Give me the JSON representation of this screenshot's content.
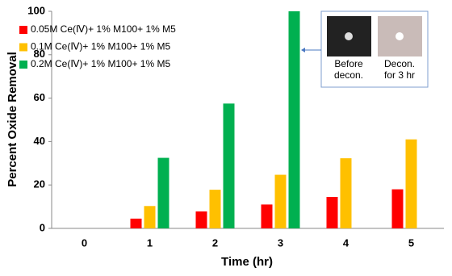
{
  "chart_data": {
    "type": "bar",
    "y_label": "Percent Oxide Removal",
    "x_label": "Time (hr)",
    "categories": [
      "0",
      "1",
      "2",
      "3",
      "4",
      "5"
    ],
    "series": [
      {
        "name": "0.05M Ce(Ⅳ)+ 1% M100+ 1% M5",
        "color": "#ff0000",
        "values": [
          0,
          4.5,
          7.8,
          11,
          14.5,
          18
        ]
      },
      {
        "name": "0.1M Ce(Ⅳ)+ 1% M100+ 1% M5",
        "color": "#ffc000",
        "values": [
          0,
          10.3,
          17.8,
          24.7,
          32.3,
          41
        ]
      },
      {
        "name": "0.2M Ce(Ⅳ)+ 1% M100+ 1% M5",
        "color": "#00b050",
        "values": [
          0,
          32.5,
          57.5,
          100,
          null,
          null
        ]
      }
    ],
    "ylim": [
      0,
      100
    ],
    "yticks": [
      0,
      20,
      40,
      60,
      80,
      100
    ],
    "inset_captions": [
      [
        "Before",
        "decon."
      ],
      [
        "Decon.",
        "for 3 hr"
      ]
    ]
  }
}
